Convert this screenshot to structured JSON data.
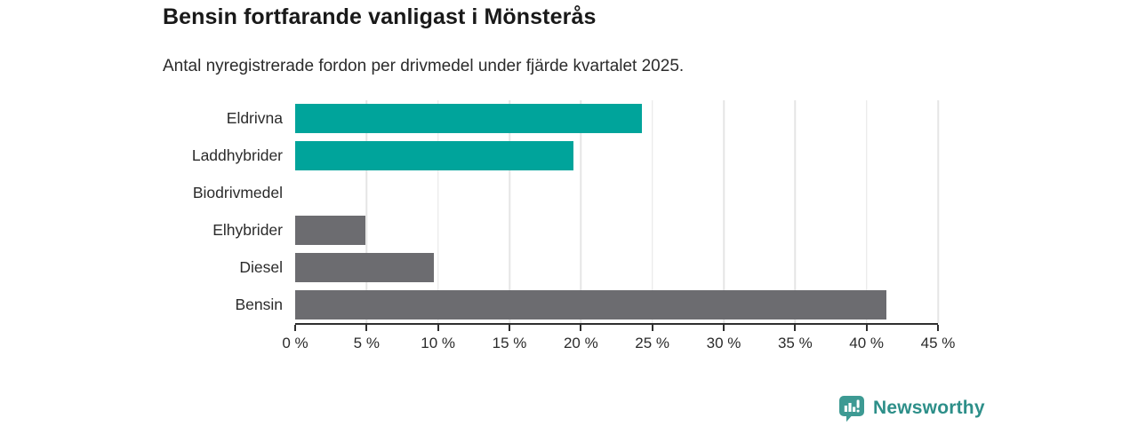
{
  "header": {
    "title": "Bensin fortfarande vanligast i Mönsterås",
    "subtitle": "Antal nyregistrerade fordon per drivmedel under fjärde kvartalet 2025."
  },
  "chart_data": {
    "type": "bar",
    "orientation": "horizontal",
    "title": "Bensin fortfarande vanligast i Mönsterås",
    "subtitle": "Antal nyregistrerade fordon per drivmedel under fjärde kvartalet 2025.",
    "categories": [
      "Eldrivna",
      "Laddhybrider",
      "Biodrivmedel",
      "Elhybrider",
      "Diesel",
      "Bensin"
    ],
    "values": [
      24.3,
      19.5,
      0,
      4.9,
      9.7,
      41.4
    ],
    "unit": "%",
    "bar_colors": [
      "#00a49b",
      "#00a49b",
      "#6c6c70",
      "#6c6c70",
      "#6c6c70",
      "#6c6c70"
    ],
    "xlabel": "",
    "ylabel": "",
    "xlim": [
      0,
      45
    ],
    "x_ticks": [
      0,
      5,
      10,
      15,
      20,
      25,
      30,
      35,
      40,
      45
    ],
    "x_tick_suffix": " %",
    "grid": "vertical-only",
    "legend": "none"
  },
  "colors": {
    "teal": "#00a49b",
    "gray": "#6c6c70",
    "grid": "#e5e5e5",
    "axis": "#2f2f2f",
    "text": "#2b2b2b",
    "brand": "#2d8f89"
  },
  "footer": {
    "brand": "Newsworthy"
  }
}
